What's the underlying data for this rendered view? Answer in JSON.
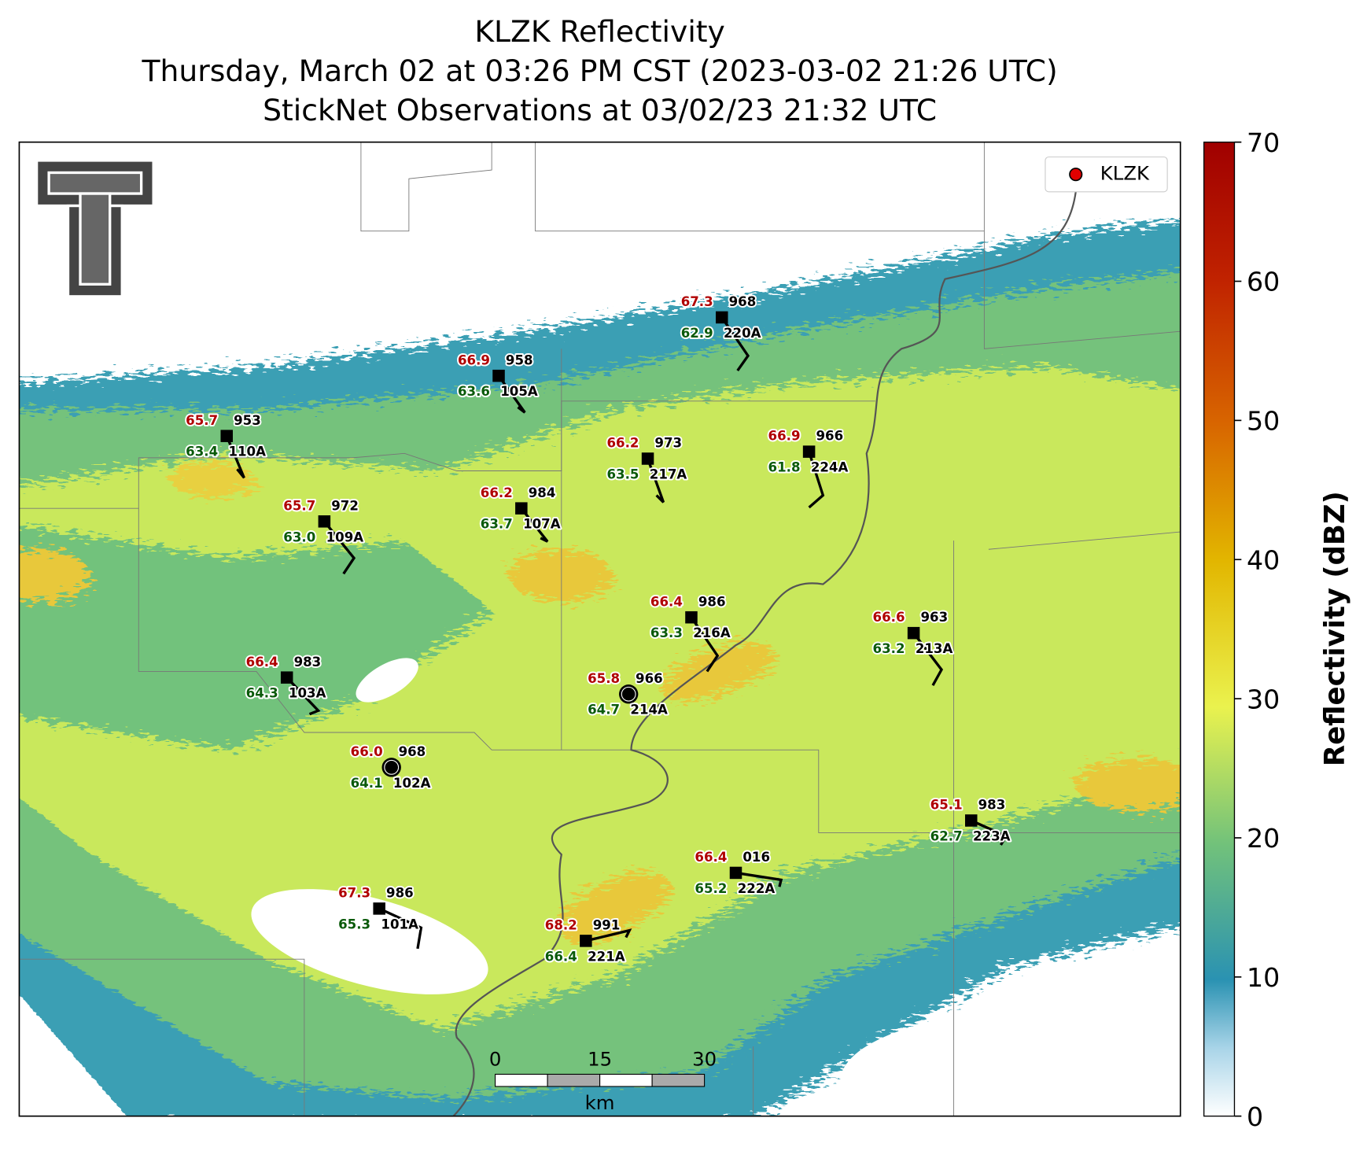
{
  "title": [
    "KLZK Reflectivity",
    "Thursday, March 02 at 03:26 PM CST (2023-03-02 21:26 UTC)",
    "StickNet Observations at 03/02/23 21:32 UTC"
  ],
  "legend": {
    "label": "KLZK",
    "color": "#e00000"
  },
  "colorbar": {
    "label": "Reflectivity (dBZ)",
    "lim": [
      0,
      70
    ],
    "ticks": [
      0,
      10,
      20,
      30,
      40,
      50,
      60,
      70
    ]
  },
  "scale_bar": {
    "ticks": [
      "0",
      "15",
      "30"
    ],
    "unit": "km"
  },
  "stations": [
    {
      "id": "220A",
      "temp": "67.3",
      "dew": "62.9",
      "pressure": "968"
    },
    {
      "id": "105A",
      "temp": "66.9",
      "dew": "63.6",
      "pressure": "958"
    },
    {
      "id": "110A",
      "temp": "65.7",
      "dew": "63.4",
      "pressure": "953"
    },
    {
      "id": "217A",
      "temp": "66.2",
      "dew": "63.5",
      "pressure": "973"
    },
    {
      "id": "224A",
      "temp": "66.9",
      "dew": "61.8",
      "pressure": "966"
    },
    {
      "id": "109A",
      "temp": "65.7",
      "dew": "63.0",
      "pressure": "972"
    },
    {
      "id": "107A",
      "temp": "66.2",
      "dew": "63.7",
      "pressure": "984"
    },
    {
      "id": "216A",
      "temp": "66.4",
      "dew": "63.3",
      "pressure": "986"
    },
    {
      "id": "213A",
      "temp": "66.6",
      "dew": "63.2",
      "pressure": "963"
    },
    {
      "id": "103A",
      "temp": "66.4",
      "dew": "64.3",
      "pressure": "983"
    },
    {
      "id": "214A",
      "temp": "65.8",
      "dew": "64.7",
      "pressure": "966"
    },
    {
      "id": "102A",
      "temp": "66.0",
      "dew": "64.1",
      "pressure": "968"
    },
    {
      "id": "223A",
      "temp": "65.1",
      "dew": "62.7",
      "pressure": "983"
    },
    {
      "id": "222A",
      "temp": "66.4",
      "dew": "65.2",
      "pressure": "016"
    },
    {
      "id": "101A",
      "temp": "67.3",
      "dew": "65.3",
      "pressure": "986"
    },
    {
      "id": "221A",
      "temp": "68.2",
      "dew": "66.4",
      "pressure": "991"
    }
  ]
}
